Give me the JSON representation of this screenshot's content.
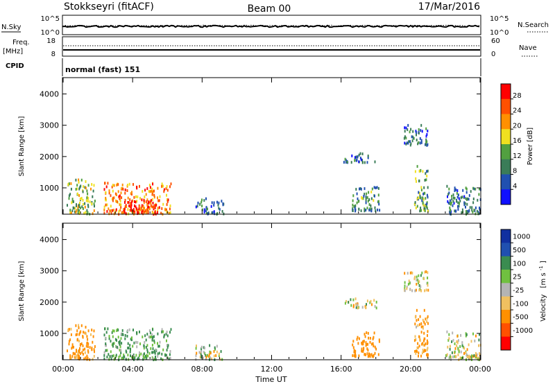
{
  "header": {
    "station": "Stokkseyri (fitACF)",
    "beam": "Beam 00",
    "date": "17/Mar/2016"
  },
  "nsky_panel": {
    "left_label": "N.Sky",
    "left_ticks": [
      "10^5",
      "10^0"
    ],
    "right_label": "N.Search",
    "right_ticks": [
      "10^5",
      "10^0"
    ]
  },
  "freq_panel": {
    "left_label_1": "Freq.",
    "left_label_2": "[MHz]",
    "left_ticks": [
      "18",
      "8"
    ],
    "right_label": "Nave",
    "right_ticks": [
      "60",
      "0"
    ]
  },
  "cpid": {
    "label": "CPID",
    "mode": "normal (fast) 151"
  },
  "colors": {
    "power": [
      "#1010ff",
      "#2050b0",
      "#3a7c58",
      "#52a040",
      "#f0e020",
      "#ff9000",
      "#ff5000",
      "#ff0000"
    ],
    "velocity": [
      "#ff0000",
      "#ff5000",
      "#ff9000",
      "#f0c060",
      "#b4b4b4",
      "#70c040",
      "#3a8c50",
      "#2050b0",
      "#1030a0"
    ]
  },
  "chart_data": [
    {
      "type": "heatmap",
      "title": "",
      "quantity": "Power",
      "ylabel": "Slant Range [km]",
      "yticks": [
        1000,
        2000,
        3000,
        4000
      ],
      "ylim": [
        180,
        4500
      ],
      "xlim": [
        0,
        24
      ],
      "xticks": [
        "00:00",
        "04:00",
        "08:00",
        "12:00",
        "16:00",
        "20:00",
        "00:00"
      ],
      "colorbar": {
        "label": "Power [dB]",
        "ticks": [
          "28",
          "24",
          "20",
          "16",
          "12",
          "8",
          "4"
        ],
        "range": [
          0,
          30
        ]
      },
      "echo_regions": [
        {
          "t": [
            0.2,
            1.8
          ],
          "r": [
            200,
            1300
          ],
          "mean_db": 14
        },
        {
          "t": [
            2.3,
            6.2
          ],
          "r": [
            200,
            1200
          ],
          "mean_db": 22
        },
        {
          "t": [
            3.5,
            5.5
          ],
          "r": [
            250,
            700
          ],
          "mean_db": 28
        },
        {
          "t": [
            7.6,
            9.2
          ],
          "r": [
            200,
            700
          ],
          "mean_db": 8
        },
        {
          "t": [
            16.1,
            18.0
          ],
          "r": [
            1850,
            2150
          ],
          "mean_db": 7
        },
        {
          "t": [
            16.6,
            18.2
          ],
          "r": [
            300,
            1100
          ],
          "mean_db": 10
        },
        {
          "t": [
            19.6,
            21.0
          ],
          "r": [
            2400,
            3050
          ],
          "mean_db": 8
        },
        {
          "t": [
            20.2,
            21.0
          ],
          "r": [
            300,
            1800
          ],
          "mean_db": 12
        },
        {
          "t": [
            22.0,
            24.0
          ],
          "r": [
            200,
            1100
          ],
          "mean_db": 8
        }
      ]
    },
    {
      "type": "heatmap",
      "title": "",
      "quantity": "Velocity",
      "ylabel": "Slant Range [km]",
      "xlabel": "Time UT",
      "yticks": [
        1000,
        2000,
        3000,
        4000
      ],
      "ylim": [
        180,
        4500
      ],
      "xlim": [
        0,
        24
      ],
      "xticks": [
        "00:00",
        "04:00",
        "08:00",
        "12:00",
        "16:00",
        "20:00",
        "00:00"
      ],
      "colorbar": {
        "label": "Velocity",
        "unit": "[m s",
        "unit_exp": "-1",
        "unit_end": "]",
        "ticks": [
          "1000",
          "500",
          "100",
          "25",
          "-25",
          "-100",
          "-500",
          "-1000"
        ]
      },
      "echo_regions": [
        {
          "t": [
            0.2,
            1.8
          ],
          "r": [
            200,
            1300
          ],
          "mean_v": -200
        },
        {
          "t": [
            2.3,
            6.2
          ],
          "r": [
            200,
            1200
          ],
          "mean_v": 120
        },
        {
          "t": [
            7.6,
            9.2
          ],
          "r": [
            200,
            700
          ],
          "mean_v": 0
        },
        {
          "t": [
            16.1,
            18.0
          ],
          "r": [
            1850,
            2150
          ],
          "mean_v": 0
        },
        {
          "t": [
            16.6,
            18.2
          ],
          "r": [
            300,
            1100
          ],
          "mean_v": -300
        },
        {
          "t": [
            19.6,
            21.0
          ],
          "r": [
            2400,
            3050
          ],
          "mean_v": 0
        },
        {
          "t": [
            20.2,
            21.0
          ],
          "r": [
            300,
            1800
          ],
          "mean_v": -150
        },
        {
          "t": [
            22.0,
            24.0
          ],
          "r": [
            200,
            1100
          ],
          "mean_v": 0
        }
      ]
    }
  ]
}
